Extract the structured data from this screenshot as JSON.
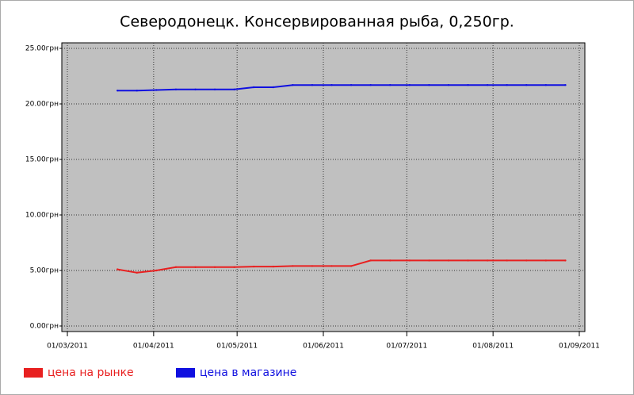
{
  "chart_data": {
    "type": "line",
    "title": "Северодонецк. Консервированная рыба, 0,250гр.",
    "x": [
      "2011-03-19",
      "2011-03-26",
      "2011-04-02",
      "2011-04-09",
      "2011-04-16",
      "2011-04-23",
      "2011-04-30",
      "2011-05-07",
      "2011-05-14",
      "2011-05-21",
      "2011-05-28",
      "2011-06-04",
      "2011-06-11",
      "2011-06-18",
      "2011-06-25",
      "2011-07-02",
      "2011-07-09",
      "2011-07-16",
      "2011-07-23",
      "2011-07-30",
      "2011-08-06",
      "2011-08-13",
      "2011-08-20",
      "2011-08-27"
    ],
    "series": [
      {
        "name": "цена на рынке",
        "color": "#e82020",
        "values": [
          5.1,
          4.8,
          5.0,
          5.3,
          5.3,
          5.3,
          5.3,
          5.35,
          5.35,
          5.4,
          5.4,
          5.4,
          5.4,
          5.9,
          5.9,
          5.9,
          5.9,
          5.9,
          5.9,
          5.9,
          5.9,
          5.9,
          5.9,
          5.9
        ]
      },
      {
        "name": "цена в магазине",
        "color": "#1010e0",
        "values": [
          21.2,
          21.2,
          21.25,
          21.3,
          21.3,
          21.3,
          21.3,
          21.5,
          21.5,
          21.7,
          21.7,
          21.7,
          21.7,
          21.7,
          21.7,
          21.7,
          21.7,
          21.7,
          21.7,
          21.7,
          21.7,
          21.7,
          21.7,
          21.7
        ]
      }
    ],
    "xlim": [
      "2011-02-27",
      "2011-09-03"
    ],
    "xticks": [
      {
        "value": "2011-03-01",
        "label": "01/03/2011"
      },
      {
        "value": "2011-04-01",
        "label": "01/04/2011"
      },
      {
        "value": "2011-05-01",
        "label": "01/05/2011"
      },
      {
        "value": "2011-06-01",
        "label": "01/06/2011"
      },
      {
        "value": "2011-07-01",
        "label": "01/07/2011"
      },
      {
        "value": "2011-08-01",
        "label": "01/08/2011"
      },
      {
        "value": "2011-09-01",
        "label": "01/09/2011"
      }
    ],
    "ylim": [
      -0.5,
      25.5
    ],
    "yticks": [
      {
        "value": 0,
        "label": "0.00грн"
      },
      {
        "value": 5,
        "label": "5.00грн"
      },
      {
        "value": 10,
        "label": "10.00грн"
      },
      {
        "value": 15,
        "label": "15.00грн"
      },
      {
        "value": 20,
        "label": "20.00грн"
      },
      {
        "value": 25,
        "label": "25.00грн"
      }
    ],
    "grid": true,
    "legend": "bottom",
    "background": "#c0c0c0"
  }
}
